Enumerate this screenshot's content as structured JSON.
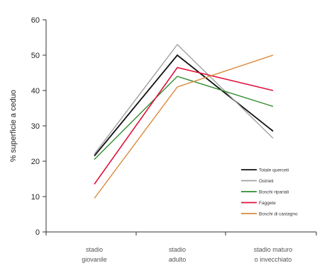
{
  "chart_data": {
    "type": "line",
    "categories": [
      [
        "stadio",
        "giovanile"
      ],
      [
        "stadio",
        "adulto"
      ],
      [
        "stadio maturo",
        "o invecchiato"
      ]
    ],
    "ylabel": "% superficie a ceduo",
    "ylim": [
      0,
      60
    ],
    "yticks": [
      0,
      10,
      20,
      30,
      40,
      50,
      60
    ],
    "grid": false,
    "legend_position": "bottom-right",
    "series": [
      {
        "name": "Totale querceti",
        "color": "#111111",
        "width": 1.8,
        "values": [
          21.5,
          50,
          28.5
        ]
      },
      {
        "name": "Ostrieti",
        "color": "#a0a0a0",
        "width": 1.4,
        "values": [
          22,
          53,
          26.5
        ]
      },
      {
        "name": "Boschi ripariali",
        "color": "#2e8b2e",
        "width": 1.4,
        "values": [
          20.5,
          44,
          35.5
        ]
      },
      {
        "name": "Faggete",
        "color": "#e0103a",
        "width": 1.6,
        "values": [
          13.5,
          46.5,
          40
        ]
      },
      {
        "name": "Boschi di castagno",
        "color": "#d98a3c",
        "width": 1.4,
        "values": [
          9.5,
          41,
          50
        ]
      }
    ]
  }
}
